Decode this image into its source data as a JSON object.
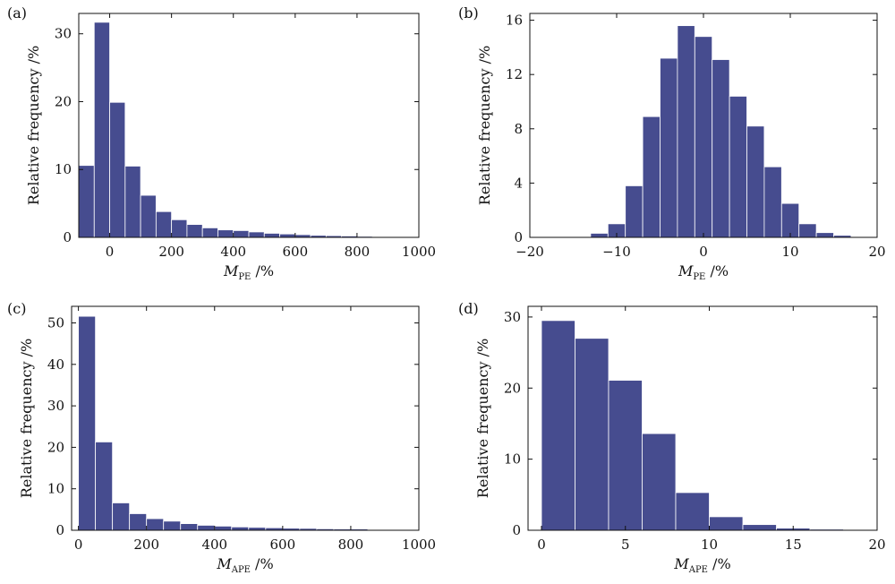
{
  "chart_data": [
    {
      "type": "bar",
      "panel_label": "(a)",
      "ylabel": "Relative frequency /%",
      "xlabel_main": "M",
      "xlabel_sub": "PE",
      "xlabel_unit": " /%",
      "xlim": [
        -100,
        1000
      ],
      "ylim": [
        0,
        33
      ],
      "xticks": [
        0,
        200,
        400,
        600,
        800,
        1000
      ],
      "yticks": [
        0,
        10,
        20,
        30
      ],
      "bin_edges": [
        -100,
        -50,
        0,
        50,
        100,
        150,
        200,
        250,
        300,
        350,
        400,
        450,
        500,
        550,
        600,
        650,
        700,
        750,
        800,
        850,
        900,
        950
      ],
      "values": [
        10.6,
        31.7,
        19.9,
        10.5,
        6.2,
        3.8,
        2.6,
        1.9,
        1.4,
        1.1,
        1.0,
        0.8,
        0.6,
        0.5,
        0.4,
        0.3,
        0.25,
        0.2,
        0.15,
        0.1,
        0.05
      ],
      "bar_color": "#464c8f"
    },
    {
      "type": "bar",
      "panel_label": "(b)",
      "ylabel": "Relative frequency /%",
      "xlabel_main": "M",
      "xlabel_sub": "PE",
      "xlabel_unit": " /%",
      "xlim": [
        -20,
        20
      ],
      "ylim": [
        0,
        16.5
      ],
      "xticks": [
        -20,
        -10,
        0,
        10,
        20
      ],
      "xtick_labels": [
        "−20",
        "−10",
        "0",
        "10",
        "20"
      ],
      "yticks": [
        0,
        4,
        8,
        12,
        16
      ],
      "bin_edges": [
        -19,
        -17,
        -15,
        -13,
        -11,
        -9,
        -7,
        -5,
        -3,
        -1,
        1,
        3,
        5,
        7,
        9,
        11,
        13,
        15,
        17,
        19
      ],
      "values": [
        0.02,
        0.03,
        0.05,
        0.3,
        1.0,
        3.8,
        8.9,
        13.2,
        15.6,
        14.8,
        13.1,
        10.4,
        8.2,
        5.2,
        2.5,
        1.0,
        0.35,
        0.15,
        0.05
      ],
      "bar_color": "#464c8f"
    },
    {
      "type": "bar",
      "panel_label": "(c)",
      "ylabel": "Relative frequency /%",
      "xlabel_main": "M",
      "xlabel_sub": "APE",
      "xlabel_unit": " /%",
      "xlim": [
        -20,
        1000
      ],
      "ylim": [
        0,
        54
      ],
      "xticks": [
        0,
        200,
        400,
        600,
        800,
        1000
      ],
      "yticks": [
        0,
        10,
        20,
        30,
        40,
        50
      ],
      "bin_edges": [
        0,
        50,
        100,
        150,
        200,
        250,
        300,
        350,
        400,
        450,
        500,
        550,
        600,
        650,
        700,
        750,
        800,
        850
      ],
      "values": [
        51.6,
        21.3,
        6.6,
        4.0,
        2.8,
        2.2,
        1.6,
        1.2,
        1.0,
        0.8,
        0.7,
        0.6,
        0.5,
        0.45,
        0.35,
        0.3,
        0.3
      ],
      "bar_color": "#464c8f"
    },
    {
      "type": "bar",
      "panel_label": "(d)",
      "ylabel": "Relative frequency /%",
      "xlabel_main": "M",
      "xlabel_sub": "APE",
      "xlabel_unit": " /%",
      "xlim": [
        -0.8,
        20
      ],
      "ylim": [
        0,
        31.5
      ],
      "xticks": [
        0,
        5,
        10,
        15,
        20
      ],
      "yticks": [
        0,
        10,
        20,
        30
      ],
      "bin_edges": [
        0,
        2,
        4,
        6,
        8,
        10,
        12,
        14,
        16,
        18,
        20
      ],
      "values": [
        29.5,
        27.0,
        21.1,
        13.6,
        5.3,
        1.9,
        0.8,
        0.3,
        0.15,
        0.05
      ],
      "bar_color": "#464c8f"
    }
  ]
}
